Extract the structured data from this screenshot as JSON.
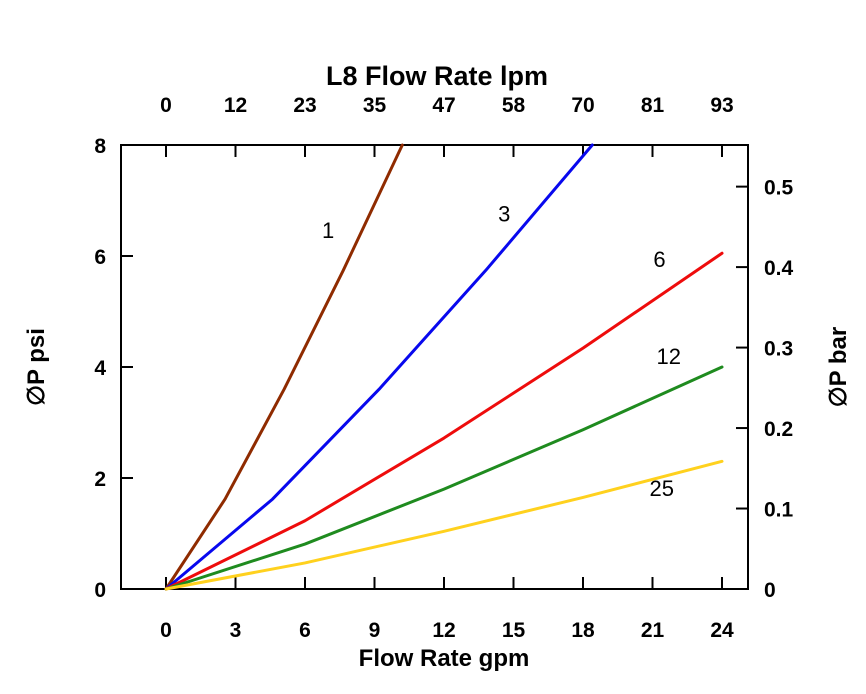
{
  "page": {
    "background": "#FFFFFF"
  },
  "chart_data": {
    "type": "line",
    "title": "L8 Flow Rate lpm",
    "xlabel": "Flow Rate gpm",
    "ylabel_left": "∅P psi",
    "ylabel_right": "∅P bar",
    "grid": false,
    "legend": "inline-labels",
    "x_axis_bottom": {
      "unit": "gpm",
      "range": [
        0,
        24
      ],
      "ticks": [
        0,
        3,
        6,
        9,
        12,
        15,
        18,
        21,
        24
      ],
      "tick_labels": [
        "0",
        "3",
        "6",
        "9",
        "12",
        "15",
        "18",
        "21",
        "24"
      ]
    },
    "x_axis_top": {
      "unit": "lpm",
      "tick_labels": [
        "0",
        "12",
        "23",
        "35",
        "47",
        "58",
        "70",
        "81",
        "93"
      ]
    },
    "y_axis_left": {
      "unit": "psi",
      "range": [
        0,
        8
      ],
      "ticks": [
        0,
        2,
        4,
        6,
        8
      ],
      "tick_labels": [
        "0",
        "2",
        "4",
        "6",
        "8"
      ]
    },
    "y_axis_right": {
      "unit": "bar",
      "psi_per_bar": 14.5,
      "ticks": [
        0,
        0.1,
        0.2,
        0.3,
        0.4,
        0.5
      ],
      "tick_labels": [
        "0",
        "0.1",
        "0.2",
        "0.3",
        "0.4",
        "0.5"
      ]
    },
    "series": [
      {
        "name": "1",
        "color": "#8F2B00",
        "points": [
          [
            0,
            0
          ],
          [
            2.55,
            1.62
          ],
          [
            5.1,
            3.6
          ],
          [
            7.65,
            5.74
          ],
          [
            10.2,
            8
          ]
        ],
        "label_at": [
          7.0,
          6.32
        ]
      },
      {
        "name": "3",
        "color": "#0808EE",
        "points": [
          [
            0,
            0
          ],
          [
            4.6,
            1.62
          ],
          [
            9.2,
            3.6
          ],
          [
            13.8,
            5.74
          ],
          [
            18.4,
            8
          ]
        ],
        "label_at": [
          14.6,
          6.62
        ]
      },
      {
        "name": "6",
        "color": "#EE0C0C",
        "points": [
          [
            0,
            0
          ],
          [
            6,
            1.23
          ],
          [
            12,
            2.72
          ],
          [
            18,
            4.34
          ],
          [
            24,
            6.05
          ]
        ],
        "label_at": [
          21.3,
          5.8
        ]
      },
      {
        "name": "12",
        "color": "#1F8B1F",
        "points": [
          [
            0,
            0
          ],
          [
            6,
            0.81
          ],
          [
            12,
            1.8
          ],
          [
            18,
            2.87
          ],
          [
            24,
            4.0
          ]
        ],
        "label_at": [
          21.7,
          4.05
        ]
      },
      {
        "name": "25",
        "color": "#FFD11E",
        "points": [
          [
            0,
            0
          ],
          [
            6,
            0.47
          ],
          [
            12,
            1.04
          ],
          [
            18,
            1.65
          ],
          [
            24,
            2.3
          ]
        ],
        "label_at": [
          21.4,
          1.68
        ]
      }
    ]
  }
}
